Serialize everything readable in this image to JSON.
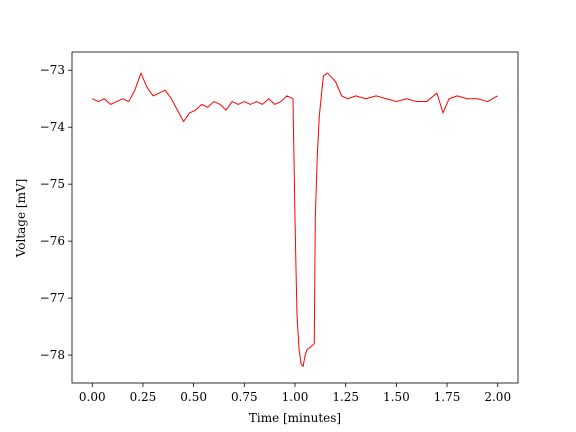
{
  "chart_data": {
    "type": "line",
    "x_label": "Time [minutes]",
    "y_label": "Voltage [mV]",
    "xlim": [
      -0.1,
      2.1
    ],
    "ylim": [
      -78.49,
      -72.68
    ],
    "xticks": [
      {
        "value": 0,
        "label": "0.00"
      },
      {
        "value": 0.25,
        "label": "0.25"
      },
      {
        "value": 0.5,
        "label": "0.50"
      },
      {
        "value": 0.75,
        "label": "0.75"
      },
      {
        "value": 1,
        "label": "1.00"
      },
      {
        "value": 1.25,
        "label": "1.25"
      },
      {
        "value": 1.5,
        "label": "1.50"
      },
      {
        "value": 1.75,
        "label": "1.75"
      },
      {
        "value": 2,
        "label": "2.00"
      }
    ],
    "yticks": [
      {
        "value": -78,
        "label": "−78"
      },
      {
        "value": -77,
        "label": "−77"
      },
      {
        "value": -76,
        "label": "−76"
      },
      {
        "value": -75,
        "label": "−75"
      },
      {
        "value": -74,
        "label": "−74"
      },
      {
        "value": -73,
        "label": "−73"
      }
    ],
    "grid": false,
    "x": [
      0,
      0.03,
      0.06,
      0.09,
      0.12,
      0.15,
      0.18,
      0.21,
      0.24,
      0.27,
      0.3,
      0.33,
      0.36,
      0.39,
      0.42,
      0.45,
      0.48,
      0.51,
      0.54,
      0.57,
      0.6,
      0.63,
      0.66,
      0.69,
      0.72,
      0.75,
      0.78,
      0.81,
      0.84,
      0.87,
      0.9,
      0.93,
      0.96,
      0.99,
      1.0,
      1.005,
      1.01,
      1.02,
      1.03,
      1.04,
      1.05,
      1.06,
      1.08,
      1.095,
      1.1,
      1.11,
      1.12,
      1.14,
      1.16,
      1.2,
      1.23,
      1.26,
      1.3,
      1.35,
      1.4,
      1.45,
      1.5,
      1.55,
      1.6,
      1.65,
      1.7,
      1.73,
      1.76,
      1.8,
      1.85,
      1.9,
      1.95,
      2.0
    ],
    "series": [
      {
        "name": "voltage",
        "color": "#ff0000",
        "values": [
          -73.5,
          -73.55,
          -73.5,
          -73.6,
          -73.55,
          -73.5,
          -73.55,
          -73.35,
          -73.05,
          -73.3,
          -73.45,
          -73.4,
          -73.35,
          -73.5,
          -73.7,
          -73.9,
          -73.75,
          -73.7,
          -73.6,
          -73.65,
          -73.55,
          -73.6,
          -73.7,
          -73.55,
          -73.6,
          -73.55,
          -73.6,
          -73.55,
          -73.6,
          -73.5,
          -73.6,
          -73.55,
          -73.45,
          -73.5,
          -75.6,
          -76.5,
          -77.3,
          -77.9,
          -78.15,
          -78.2,
          -78.0,
          -77.9,
          -77.85,
          -77.8,
          -75.6,
          -74.5,
          -73.8,
          -73.1,
          -73.05,
          -73.2,
          -73.45,
          -73.5,
          -73.45,
          -73.5,
          -73.45,
          -73.5,
          -73.55,
          -73.5,
          -73.55,
          -73.55,
          -73.4,
          -73.75,
          -73.5,
          -73.45,
          -73.5,
          -73.5,
          -73.55,
          -73.45
        ]
      }
    ]
  }
}
